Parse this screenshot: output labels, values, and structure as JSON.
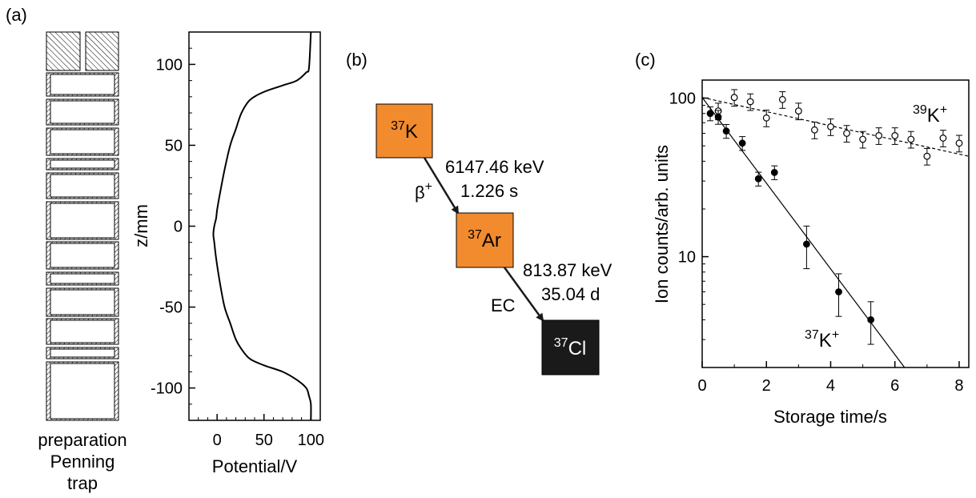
{
  "colors": {
    "parent_box": "#F28A2E",
    "daughter_box": "#F28A2E",
    "final_box": "#1A1A1A"
  },
  "panels": {
    "a_label": "(a)",
    "b_label": "(b)",
    "c_label": "(c)"
  },
  "trap": {
    "label_lines": [
      "preparation",
      "Penning",
      "trap"
    ],
    "electrodes": [
      "top-endcap",
      "ring-1",
      "ring-2",
      "ring-3",
      "ring-4",
      "ring-5",
      "ring-6",
      "ring-7",
      "ring-8",
      "ring-9",
      "ring-10",
      "ring-11",
      "ring-12",
      "ring-13"
    ]
  },
  "chart_data": [
    {
      "type": "line",
      "title": "",
      "xlabel": "Potential/V",
      "ylabel": "z/mm",
      "xlim": [
        -30,
        110
      ],
      "ylim": [
        -120,
        120
      ],
      "xticks": [
        0,
        50,
        100
      ],
      "yticks": [
        100,
        50,
        0,
        -50,
        -100
      ],
      "grid": false,
      "series": [
        {
          "x": [
            100,
            98,
            95,
            85,
            70,
            50,
            35,
            26,
            20,
            14,
            8,
            3,
            0,
            -1,
            -3,
            -4,
            -3,
            -1,
            3,
            8,
            14,
            20,
            26,
            35,
            50,
            70,
            85,
            95,
            98,
            100,
            100
          ],
          "y": [
            120,
            98,
            95,
            90,
            87,
            83,
            78,
            70,
            60,
            50,
            35,
            20,
            10,
            5,
            0,
            -5,
            -10,
            -20,
            -35,
            -50,
            -60,
            -70,
            -76,
            -82,
            -86,
            -90,
            -95,
            -100,
            -105,
            -110,
            -120
          ]
        }
      ]
    },
    {
      "type": "scatter",
      "title": "",
      "xlabel": "Storage time/s",
      "ylabel": "Ion counts/arb. units",
      "xlim": [
        0,
        8.3
      ],
      "ylim": [
        2,
        130
      ],
      "yscale": "log",
      "xticks": [
        0,
        2,
        4,
        6,
        8
      ],
      "yticks": [
        10,
        100
      ],
      "grid": false,
      "series": [
        {
          "name": "39K+",
          "marker": "open-circle",
          "x": [
            0.5,
            1.0,
            1.5,
            2.0,
            2.5,
            3.0,
            3.5,
            4.0,
            4.5,
            5.0,
            5.5,
            6.0,
            6.5,
            7.0,
            7.5,
            8.0
          ],
          "y": [
            83,
            101,
            95,
            75,
            98,
            83,
            63,
            66,
            60,
            55,
            58,
            58,
            55,
            43,
            56,
            52
          ],
          "fit": {
            "style": "dashed",
            "x": [
              0,
              8.3
            ],
            "y": [
              101,
              43
            ]
          }
        },
        {
          "name": "37K+",
          "marker": "filled-circle",
          "x": [
            0.25,
            0.5,
            0.75,
            1.25,
            1.75,
            2.25,
            3.25,
            4.25,
            5.25
          ],
          "y": [
            80,
            76,
            62,
            52,
            31,
            34,
            12,
            6,
            4
          ],
          "fit": {
            "style": "solid",
            "x": [
              0,
              6.3
            ],
            "y": [
              101,
              2
            ]
          }
        }
      ],
      "annotations": {
        "top_species": "K",
        "top_mass": "39",
        "top_charge": "+",
        "bottom_species": "K",
        "bottom_mass": "37",
        "bottom_charge": "+"
      }
    }
  ],
  "decay": {
    "parent": {
      "mass": "37",
      "symbol": "K"
    },
    "daughter": {
      "mass": "37",
      "symbol": "Ar"
    },
    "final": {
      "mass": "37",
      "symbol": "Cl"
    },
    "step1": {
      "mode_symbol": "β",
      "mode_charge": "+",
      "energy": "6147.46 keV",
      "halflife": "1.226 s"
    },
    "step2": {
      "mode": "EC",
      "energy": "813.87 keV",
      "halflife": "35.04 d"
    }
  }
}
